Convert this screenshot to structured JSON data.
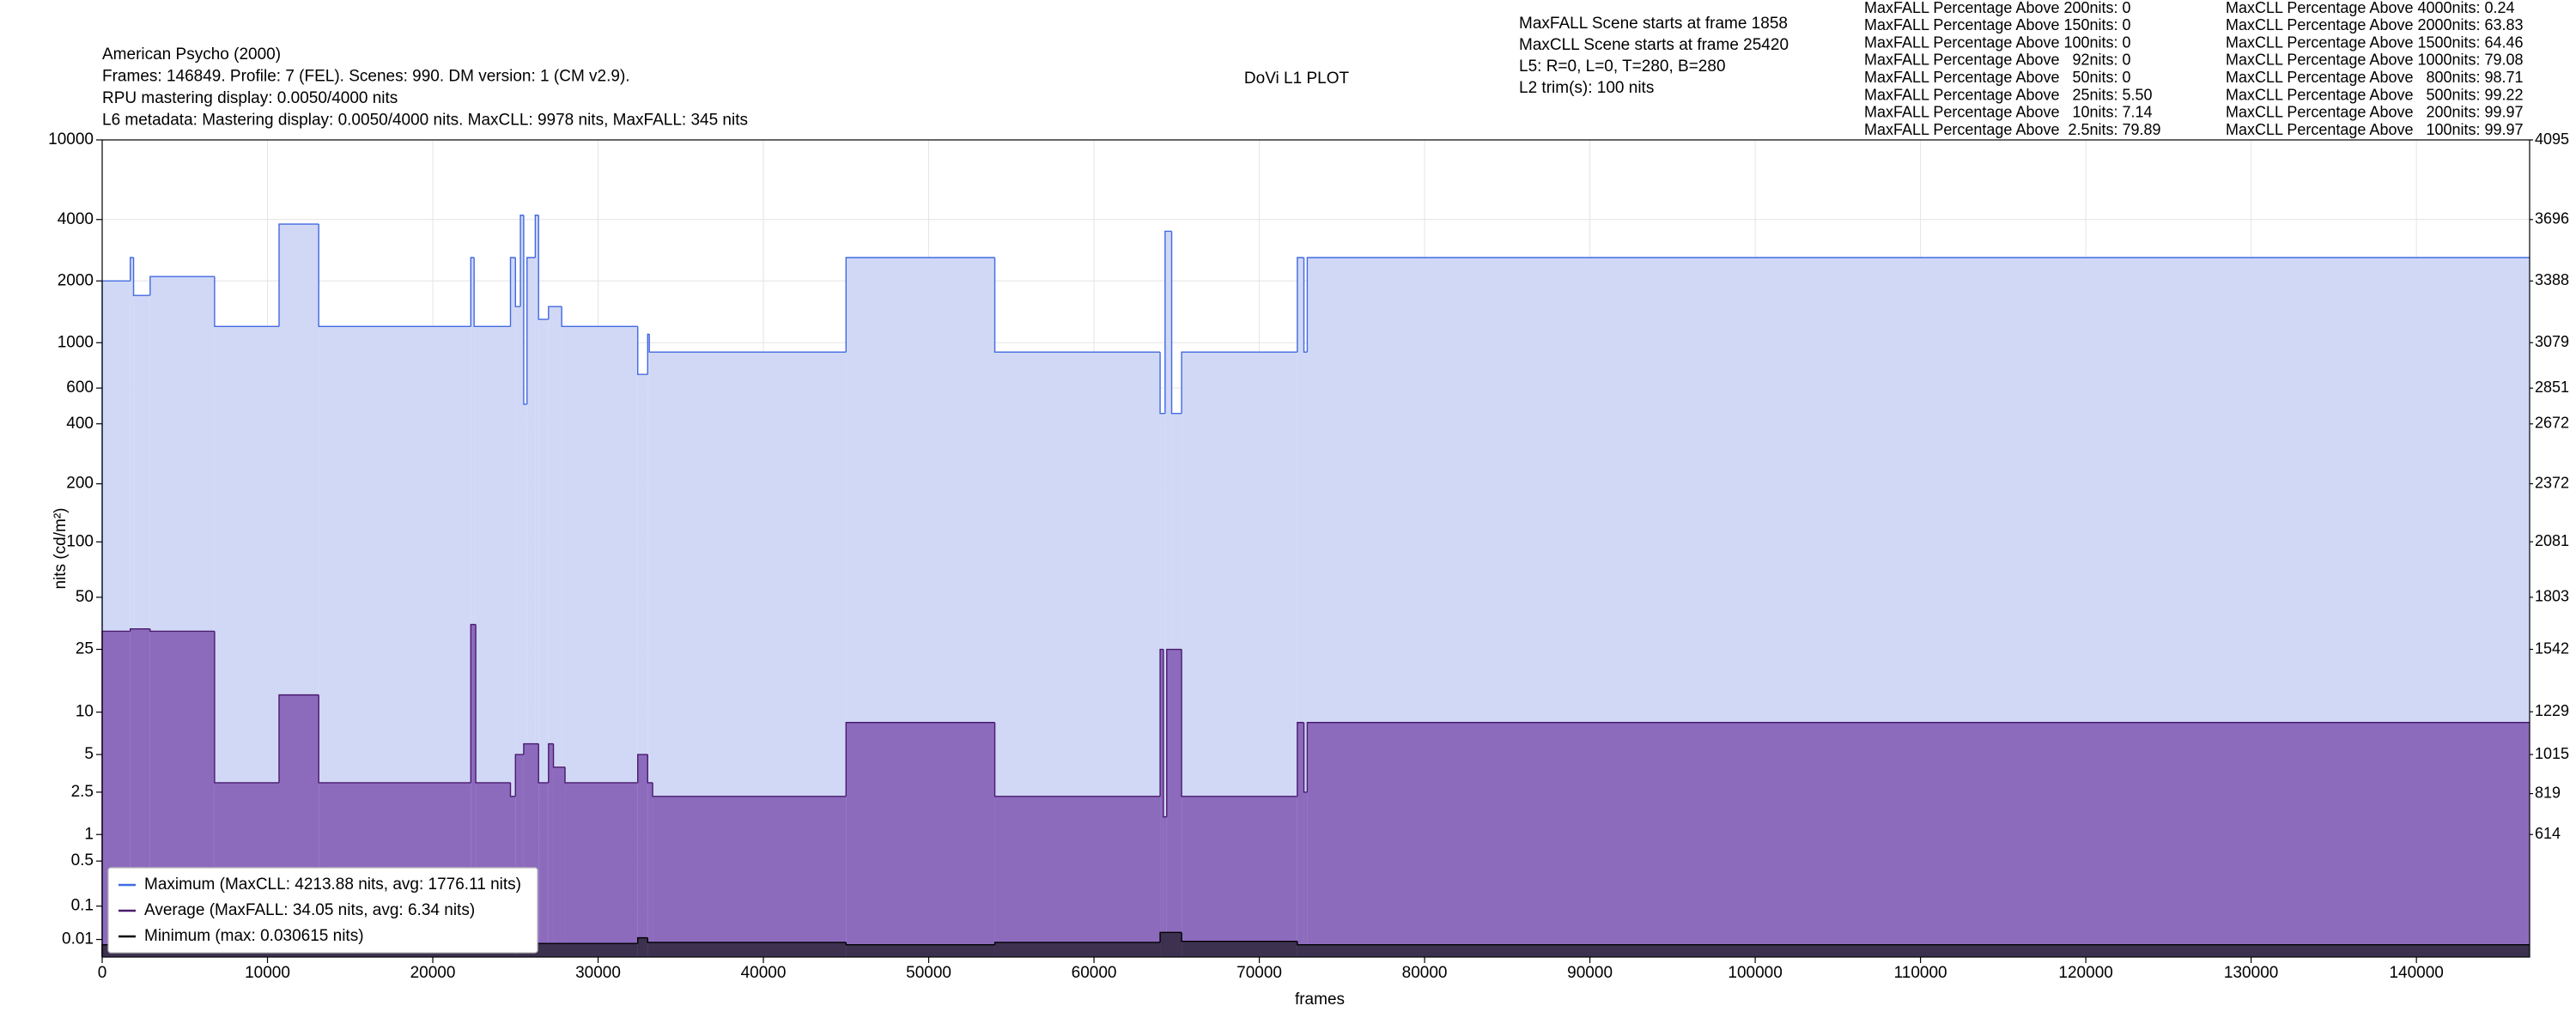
{
  "chart_data": {
    "type": "line",
    "drawstyle": "steps-post",
    "title": "DoVi L1 PLOT",
    "header_lines": [
      "American Psycho (2000)",
      "Frames: 146849. Profile: 7 (FEL). Scenes: 990. DM version: 1 (CM v2.9).",
      "RPU mastering display: 0.0050/4000 nits",
      "L6 metadata: Mastering display: 0.0050/4000 nits. MaxCLL: 9978 nits, MaxFALL: 345 nits"
    ],
    "scene_info": [
      "MaxFALL Scene starts at frame 1858",
      "MaxCLL Scene starts at frame 25420",
      "L5: R=0, L=0, T=280, B=280",
      "L2 trim(s): 100 nits"
    ],
    "maxfall_percentages": [
      "MaxFALL Percentage Above 200nits: 0",
      "MaxFALL Percentage Above 150nits: 0",
      "MaxFALL Percentage Above 100nits: 0",
      "MaxFALL Percentage Above   92nits: 0",
      "MaxFALL Percentage Above   50nits: 0",
      "MaxFALL Percentage Above   25nits: 5.50",
      "MaxFALL Percentage Above   10nits: 7.14",
      "MaxFALL Percentage Above  2.5nits: 79.89"
    ],
    "maxcll_percentages": [
      "MaxCLL Percentage Above 4000nits: 0.24",
      "MaxCLL Percentage Above 2000nits: 63.83",
      "MaxCLL Percentage Above 1500nits: 64.46",
      "MaxCLL Percentage Above 1000nits: 79.08",
      "MaxCLL Percentage Above   800nits: 98.71",
      "MaxCLL Percentage Above   500nits: 99.22",
      "MaxCLL Percentage Above   200nits: 99.97",
      "MaxCLL Percentage Above   100nits: 99.97"
    ],
    "xlabel": "frames",
    "ylabel": "nits (cd/m²)",
    "xlim": [
      0,
      146849
    ],
    "xticks": [
      0,
      10000,
      20000,
      30000,
      40000,
      50000,
      60000,
      70000,
      80000,
      90000,
      100000,
      110000,
      120000,
      130000,
      140000
    ],
    "ylim": [
      0,
      10000
    ],
    "yscale": "pq",
    "yticks": [
      10000,
      4000,
      2000,
      1000,
      600,
      400,
      200,
      100,
      50,
      25,
      10,
      5,
      2.5,
      1,
      0.5,
      0.1,
      0.01
    ],
    "y2lim": [
      0,
      4095
    ],
    "y2ticks": [
      4095,
      3696,
      3388,
      3079,
      2851,
      2672,
      2372,
      2081,
      1803,
      1542,
      1229,
      1015,
      819,
      614
    ],
    "grid": true,
    "legend": "lower left",
    "series": [
      {
        "name": "Maximum (MaxCLL: 4213.88 nits, avg: 1776.11 nits)",
        "color": "#4169e1",
        "fill": "#d0d8f6",
        "x": [
          0,
          1700,
          1900,
          2900,
          6800,
          10700,
          13100,
          22300,
          22500,
          24700,
          25000,
          25300,
          25500,
          25700,
          26200,
          26400,
          27000,
          27800,
          32400,
          33000,
          33100,
          45000,
          54000,
          64000,
          64300,
          64700,
          65300,
          72300,
          72700,
          72900
        ],
        "values": [
          2000,
          2600,
          1700,
          2100,
          1200,
          3800,
          1200,
          2600,
          1200,
          2600,
          1500,
          4200,
          500,
          2600,
          4200,
          1300,
          1500,
          1200,
          700,
          1100,
          900,
          2600,
          900,
          450,
          3500,
          450,
          900,
          2600,
          900,
          2600
        ]
      },
      {
        "name": "Average (MaxFALL: 34.05 nits, avg: 6.34 nits)",
        "color": "#4b1a6e",
        "fill": "#8c6bbd",
        "x": [
          0,
          1700,
          2900,
          6800,
          10700,
          13100,
          22300,
          22600,
          24700,
          25000,
          25500,
          26400,
          27000,
          27300,
          28000,
          32400,
          33000,
          33300,
          45000,
          54000,
          64000,
          64200,
          64400,
          65300,
          72300,
          72700,
          72900
        ],
        "values": [
          32,
          33,
          32,
          3,
          13,
          3,
          35,
          3,
          2.3,
          5,
          6,
          3,
          6,
          4,
          3,
          5,
          3,
          2.3,
          8.5,
          2.3,
          25,
          1.5,
          25,
          2.3,
          8.5,
          2.5,
          8.5
        ]
      },
      {
        "name": "Minimum (max: 0.030615 nits)",
        "color": "#000000",
        "fill": "#3d3150",
        "x": [
          0,
          25000,
          32400,
          33000,
          45000,
          54000,
          64000,
          65300,
          72300
        ],
        "values": [
          0.005,
          0.006,
          0.012,
          0.007,
          0.005,
          0.007,
          0.02,
          0.008,
          0.005
        ]
      }
    ]
  }
}
